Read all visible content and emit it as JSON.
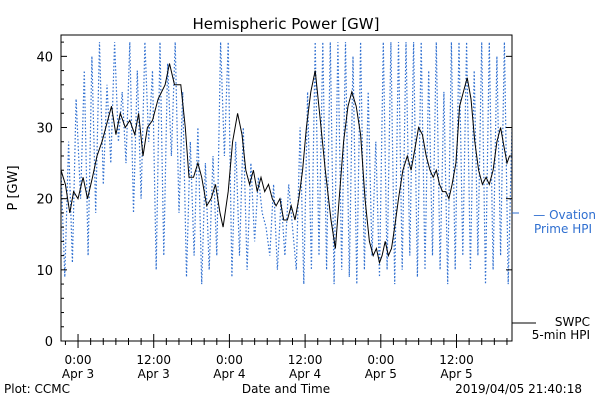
{
  "chart_data": {
    "type": "line",
    "title": "Hemispheric Power [GW]",
    "ylabel": "P [GW]",
    "xlabel": "Date and Time",
    "ylim": [
      0,
      43
    ],
    "yticks": [
      0,
      10,
      20,
      30,
      40
    ],
    "xlim_hours": [
      -2.7,
      68.8
    ],
    "xticks": [
      {
        "h": 0,
        "line1": "0:00",
        "line2": "Apr 3"
      },
      {
        "h": 12,
        "line1": "12:00",
        "line2": "Apr 3"
      },
      {
        "h": 24,
        "line1": "0:00",
        "line2": "Apr 4"
      },
      {
        "h": 36,
        "line1": "12:00",
        "line2": "Apr 4"
      },
      {
        "h": 48,
        "line1": "0:00",
        "line2": "Apr 5"
      },
      {
        "h": 60,
        "line1": "12:00",
        "line2": "Apr 5"
      }
    ],
    "series": [
      {
        "name": "SWPC 5-min HPI",
        "style": "solid",
        "color": "#000000",
        "points": [
          [
            -2.7,
            24
          ],
          [
            -2.0,
            22
          ],
          [
            -1.3,
            18
          ],
          [
            -0.7,
            21
          ],
          [
            0,
            20
          ],
          [
            0.8,
            23
          ],
          [
            1.5,
            20
          ],
          [
            2.3,
            23
          ],
          [
            3.0,
            26
          ],
          [
            3.8,
            28
          ],
          [
            4.7,
            31
          ],
          [
            5.3,
            33
          ],
          [
            6.0,
            29
          ],
          [
            6.7,
            32
          ],
          [
            7.5,
            30
          ],
          [
            8.2,
            31
          ],
          [
            9.0,
            29
          ],
          [
            9.6,
            32
          ],
          [
            10.3,
            26
          ],
          [
            11.0,
            30
          ],
          [
            11.8,
            31
          ],
          [
            12.7,
            34
          ],
          [
            13.8,
            36
          ],
          [
            14.5,
            39
          ],
          [
            15.3,
            36
          ],
          [
            16.3,
            36
          ],
          [
            17.0,
            30
          ],
          [
            17.6,
            23
          ],
          [
            18.3,
            23
          ],
          [
            19.0,
            25
          ],
          [
            19.6,
            23
          ],
          [
            20.4,
            19
          ],
          [
            21.1,
            20
          ],
          [
            21.8,
            22
          ],
          [
            22.5,
            18
          ],
          [
            23.0,
            16
          ],
          [
            23.8,
            21
          ],
          [
            24.5,
            28
          ],
          [
            25.3,
            32
          ],
          [
            26.0,
            29
          ],
          [
            26.6,
            24
          ],
          [
            27.2,
            22
          ],
          [
            27.8,
            24
          ],
          [
            28.4,
            21
          ],
          [
            29.0,
            23
          ],
          [
            29.6,
            21
          ],
          [
            30.2,
            22
          ],
          [
            30.8,
            20
          ],
          [
            31.4,
            19
          ],
          [
            32.0,
            20
          ],
          [
            32.6,
            17
          ],
          [
            33.2,
            17
          ],
          [
            33.8,
            19
          ],
          [
            34.4,
            17
          ],
          [
            35.0,
            20
          ],
          [
            35.6,
            24
          ],
          [
            36.2,
            30
          ],
          [
            36.9,
            35
          ],
          [
            37.6,
            38
          ],
          [
            38.3,
            32
          ],
          [
            39.2,
            24
          ],
          [
            40.1,
            17
          ],
          [
            40.8,
            13
          ],
          [
            41.4,
            20
          ],
          [
            42.1,
            28
          ],
          [
            42.8,
            33
          ],
          [
            43.4,
            35
          ],
          [
            44.1,
            33
          ],
          [
            44.8,
            29
          ],
          [
            45.5,
            20
          ],
          [
            46.2,
            14
          ],
          [
            46.8,
            12
          ],
          [
            47.3,
            13
          ],
          [
            47.8,
            11
          ],
          [
            48.2,
            12
          ],
          [
            48.7,
            14
          ],
          [
            49.2,
            12
          ],
          [
            49.7,
            13
          ],
          [
            50.2,
            16
          ],
          [
            50.8,
            20
          ],
          [
            51.5,
            24
          ],
          [
            52.2,
            26
          ],
          [
            52.8,
            24
          ],
          [
            53.4,
            27
          ],
          [
            54.0,
            30
          ],
          [
            54.6,
            29
          ],
          [
            55.2,
            26
          ],
          [
            55.8,
            24
          ],
          [
            56.3,
            23
          ],
          [
            56.8,
            24
          ],
          [
            57.3,
            22
          ],
          [
            57.8,
            21
          ],
          [
            58.3,
            21
          ],
          [
            58.8,
            20
          ],
          [
            59.3,
            22
          ],
          [
            59.9,
            25
          ],
          [
            60.5,
            33
          ],
          [
            61.1,
            35
          ],
          [
            61.7,
            37
          ],
          [
            62.3,
            34
          ],
          [
            62.9,
            28
          ],
          [
            63.5,
            24
          ],
          [
            64.1,
            22
          ],
          [
            64.7,
            23
          ],
          [
            65.2,
            22
          ],
          [
            65.8,
            24
          ],
          [
            66.4,
            28
          ],
          [
            67.0,
            30
          ],
          [
            67.6,
            27
          ],
          [
            68.0,
            25
          ],
          [
            68.4,
            26
          ],
          [
            68.8,
            26
          ]
        ]
      },
      {
        "name": "Ovation Prime HPI",
        "style": "dotted",
        "color": "#2f6fd0",
        "points": [
          [
            -2.7,
            24
          ],
          [
            -2.1,
            9
          ],
          [
            -1.5,
            28
          ],
          [
            -0.9,
            11
          ],
          [
            -0.3,
            34
          ],
          [
            0.4,
            20
          ],
          [
            1.0,
            38
          ],
          [
            1.6,
            12
          ],
          [
            2.2,
            40
          ],
          [
            2.8,
            18
          ],
          [
            3.4,
            42
          ],
          [
            4.0,
            22
          ],
          [
            4.6,
            36
          ],
          [
            5.2,
            25
          ],
          [
            5.8,
            42
          ],
          [
            6.4,
            28
          ],
          [
            7.0,
            35
          ],
          [
            7.6,
            25
          ],
          [
            8.2,
            42
          ],
          [
            8.8,
            18
          ],
          [
            9.4,
            38
          ],
          [
            10.0,
            20
          ],
          [
            10.6,
            42
          ],
          [
            11.2,
            28
          ],
          [
            11.8,
            38
          ],
          [
            12.4,
            10
          ],
          [
            13.0,
            42
          ],
          [
            13.6,
            12
          ],
          [
            14.2,
            39
          ],
          [
            14.8,
            26
          ],
          [
            15.4,
            42
          ],
          [
            16.0,
            18
          ],
          [
            16.6,
            35
          ],
          [
            17.2,
            9
          ],
          [
            17.8,
            28
          ],
          [
            18.4,
            12
          ],
          [
            19.0,
            30
          ],
          [
            19.6,
            8
          ],
          [
            20.2,
            25
          ],
          [
            20.8,
            10
          ],
          [
            21.4,
            26
          ],
          [
            22.0,
            12
          ],
          [
            22.6,
            42
          ],
          [
            23.2,
            26
          ],
          [
            23.8,
            42
          ],
          [
            24.4,
            9
          ],
          [
            25.0,
            28
          ],
          [
            25.6,
            12
          ],
          [
            26.2,
            30
          ],
          [
            26.8,
            10
          ],
          [
            27.4,
            25
          ],
          [
            28.0,
            14
          ],
          [
            28.6,
            23
          ],
          [
            29.2,
            18
          ],
          [
            29.8,
            16
          ],
          [
            30.4,
            12
          ],
          [
            31.0,
            22
          ],
          [
            31.6,
            10
          ],
          [
            32.2,
            20
          ],
          [
            32.8,
            12
          ],
          [
            33.4,
            22
          ],
          [
            34.0,
            16
          ],
          [
            34.6,
            10
          ],
          [
            35.2,
            30
          ],
          [
            35.8,
            8
          ],
          [
            36.4,
            35
          ],
          [
            37.0,
            10
          ],
          [
            37.6,
            42
          ],
          [
            38.2,
            12
          ],
          [
            38.8,
            42
          ],
          [
            39.4,
            10
          ],
          [
            40.0,
            42
          ],
          [
            40.6,
            8
          ],
          [
            41.2,
            42
          ],
          [
            41.8,
            10
          ],
          [
            42.4,
            42
          ],
          [
            43.0,
            9
          ],
          [
            43.6,
            40
          ],
          [
            44.2,
            8
          ],
          [
            44.8,
            42
          ],
          [
            45.4,
            10
          ],
          [
            46.0,
            35
          ],
          [
            46.6,
            12
          ],
          [
            47.2,
            28
          ],
          [
            47.8,
            9
          ],
          [
            48.4,
            42
          ],
          [
            49.0,
            10
          ],
          [
            49.6,
            42
          ],
          [
            50.2,
            8
          ],
          [
            50.8,
            42
          ],
          [
            51.4,
            10
          ],
          [
            52.0,
            42
          ],
          [
            52.6,
            12
          ],
          [
            53.2,
            42
          ],
          [
            53.8,
            9
          ],
          [
            54.4,
            42
          ],
          [
            55.0,
            10
          ],
          [
            55.6,
            38
          ],
          [
            56.2,
            12
          ],
          [
            56.8,
            42
          ],
          [
            57.4,
            10
          ],
          [
            58.0,
            35
          ],
          [
            58.6,
            8
          ],
          [
            59.2,
            42
          ],
          [
            59.8,
            10
          ],
          [
            60.4,
            42
          ],
          [
            61.0,
            12
          ],
          [
            61.6,
            42
          ],
          [
            62.2,
            10
          ],
          [
            62.8,
            38
          ],
          [
            63.4,
            12
          ],
          [
            64.0,
            42
          ],
          [
            64.6,
            8
          ],
          [
            65.2,
            42
          ],
          [
            65.8,
            10
          ],
          [
            66.4,
            40
          ],
          [
            67.0,
            12
          ],
          [
            67.6,
            42
          ],
          [
            68.2,
            8
          ],
          [
            68.8,
            30
          ]
        ]
      }
    ],
    "legend": [
      {
        "label": "— Ovation",
        "label2": "Prime HPI",
        "color": "#2f6fd0"
      },
      {
        "label": "SWPC",
        "label2": "5-min HPI",
        "color": "#000000"
      }
    ],
    "footer_left": "Plot: CCMC",
    "footer_right": "2019/04/05 21:40:18"
  }
}
